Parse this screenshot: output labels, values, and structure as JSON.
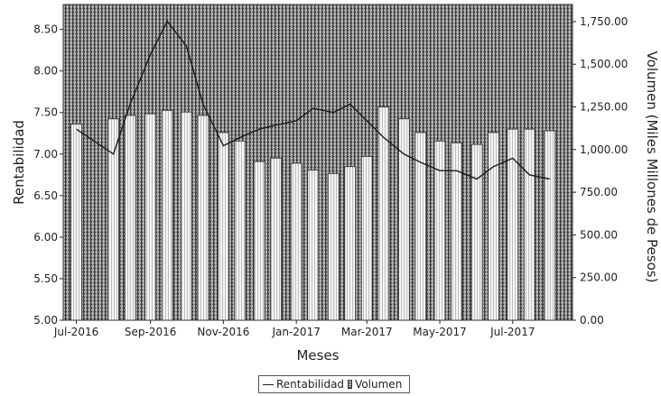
{
  "chart_data": {
    "type": "bar",
    "xlabel": "Meses",
    "ylabel_left": "Rentabilidad",
    "ylabel_right": "Volumen (Miles Millones de Pesos)",
    "x_ticks": [
      "Jul-2016",
      "Sep-2016",
      "Nov-2016",
      "Jan-2017",
      "Mar-2017",
      "May-2017",
      "Jul-2017"
    ],
    "y_left_ticks": [
      "5.00",
      "5.50",
      "6.00",
      "6.50",
      "7.00",
      "7.50",
      "8.00",
      "8.50"
    ],
    "y_left_lim": [
      5.0,
      8.8
    ],
    "y_right_ticks": [
      "0.00",
      "250.00",
      "500.00",
      "750.00",
      "1,000.00",
      "1,250.00",
      "1,500.00",
      "1,750.00"
    ],
    "y_right_lim": [
      0,
      1850
    ],
    "series": [
      {
        "name": "Rentabilidad",
        "type": "line",
        "axis": "left",
        "x": [
          "2016-07-01",
          "2016-08-01",
          "2016-08-15",
          "2016-09-01",
          "2016-09-15",
          "2016-10-01",
          "2016-10-15",
          "2016-11-01",
          "2016-11-15",
          "2016-12-01",
          "2016-12-15",
          "2017-01-01",
          "2017-01-15",
          "2017-02-01",
          "2017-02-15",
          "2017-03-01",
          "2017-03-15",
          "2017-04-01",
          "2017-04-15",
          "2017-05-01",
          "2017-05-15",
          "2017-06-01",
          "2017-06-15",
          "2017-07-01",
          "2017-07-15",
          "2017-08-01"
        ],
        "values": [
          7.3,
          7.0,
          7.6,
          8.2,
          8.6,
          8.3,
          7.6,
          7.1,
          7.2,
          7.3,
          7.35,
          7.4,
          7.55,
          7.5,
          7.6,
          7.4,
          7.2,
          7.0,
          6.9,
          6.8,
          6.8,
          6.7,
          6.85,
          6.95,
          6.75,
          6.7
        ]
      },
      {
        "name": "Volumen",
        "type": "bar",
        "axis": "right",
        "x": [
          "2016-07-01",
          "2016-08-01",
          "2016-08-15",
          "2016-09-01",
          "2016-09-15",
          "2016-10-01",
          "2016-10-15",
          "2016-11-01",
          "2016-11-15",
          "2016-12-01",
          "2016-12-15",
          "2017-01-01",
          "2017-01-15",
          "2017-02-01",
          "2017-02-15",
          "2017-03-01",
          "2017-03-15",
          "2017-04-01",
          "2017-04-15",
          "2017-05-01",
          "2017-05-15",
          "2017-06-01",
          "2017-06-15",
          "2017-07-01",
          "2017-07-15",
          "2017-08-01"
        ],
        "values": [
          1150,
          1180,
          1200,
          1210,
          1230,
          1220,
          1200,
          1100,
          1050,
          930,
          950,
          920,
          880,
          860,
          900,
          960,
          1250,
          1180,
          1100,
          1050,
          1040,
          1030,
          1100,
          1120,
          1120,
          1110
        ]
      }
    ],
    "legend": [
      "Rentabilidad",
      "Volumen"
    ],
    "legend_position": "bottom",
    "grid": false
  }
}
